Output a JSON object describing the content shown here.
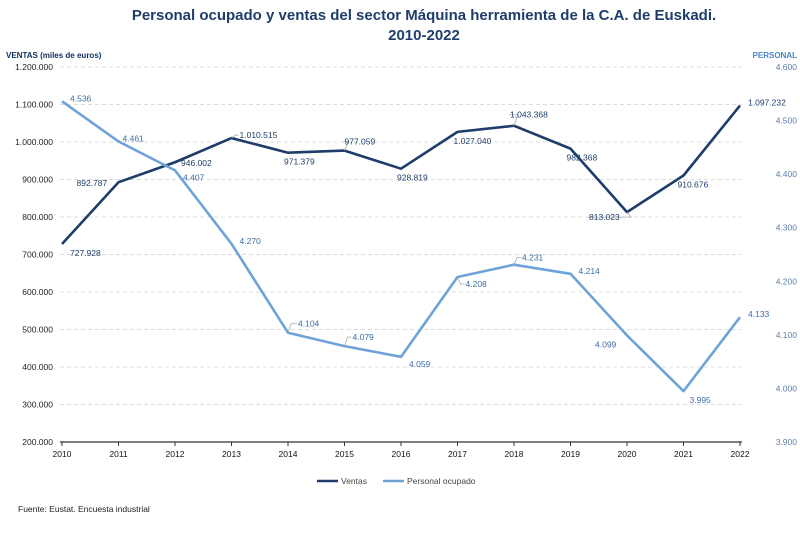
{
  "chart_data": {
    "type": "line",
    "title_line1": "Personal ocupado y ventas del sector Máquina herramienta de la C.A. de Euskadi.",
    "title_line2": "2010-2022",
    "left_axis_label": "VENTAS (miles de euros)",
    "right_axis_label": "PERSONAL",
    "categories": [
      "2010",
      "2011",
      "2012",
      "2013",
      "2014",
      "2015",
      "2016",
      "2017",
      "2018",
      "2019",
      "2020",
      "2021",
      "2022"
    ],
    "left_axis": {
      "min": 200000,
      "max": 1200000,
      "ticks": [
        200000,
        300000,
        400000,
        500000,
        600000,
        700000,
        800000,
        900000,
        1000000,
        1100000,
        1200000
      ],
      "tick_labels": [
        "200.000",
        "300.000",
        "400.000",
        "500.000",
        "600.000",
        "700.000",
        "800.000",
        "900.000",
        "1.000.000",
        "1.100.000",
        "1.200.000"
      ]
    },
    "right_axis": {
      "min": 3900,
      "max": 4600,
      "ticks": [
        3900,
        4000,
        4100,
        4200,
        4300,
        4400,
        4500,
        4600
      ],
      "tick_labels": [
        "3.900",
        "4.000",
        "4.100",
        "4.200",
        "4.300",
        "4.400",
        "4.500",
        "4.600"
      ]
    },
    "series": [
      {
        "name": "Ventas",
        "axis": "left",
        "color": "#1f3d6b",
        "values": [
          727928,
          892787,
          946002,
          1010515,
          971379,
          977059,
          928819,
          1027040,
          1043368,
          982368,
          813023,
          910676,
          1097232
        ],
        "labels": [
          "727.928",
          "892.787",
          "946.002",
          "1.010.515",
          "971.379",
          "977.059",
          "928.819",
          "1.027.040",
          "1.043.368",
          "982.368",
          "813.023",
          "910.676",
          "1.097.232"
        ]
      },
      {
        "name": "Personal ocupado",
        "axis": "right",
        "color": "#6fa3d8",
        "values": [
          4536,
          4461,
          4407,
          4270,
          4104,
          4079,
          4059,
          4208,
          4231,
          4214,
          4099,
          3995,
          4133
        ],
        "labels": [
          "4.536",
          "4.461",
          "4.407",
          "4.270",
          "4.104",
          "4.079",
          "4.059",
          "4.208",
          "4.231",
          "4.214",
          "4.099",
          "3.995",
          "4.133"
        ]
      }
    ],
    "legend_position": "bottom-center",
    "gridlines": true,
    "source": "Fuente: Eustat. Encuesta industrial"
  }
}
